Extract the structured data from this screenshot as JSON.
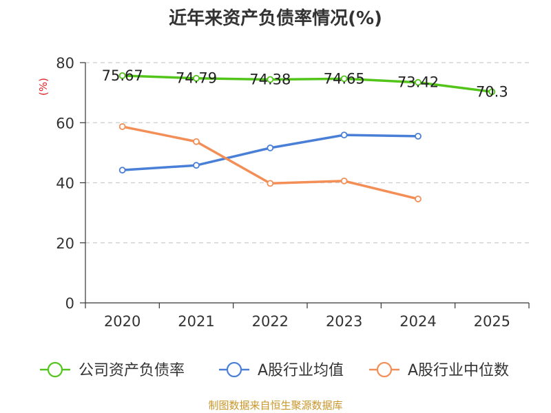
{
  "chart_data": {
    "type": "line",
    "title": "近年来资产负债率情况(%)",
    "ylabel": "(%)",
    "xlabel": "",
    "categories": [
      "2020",
      "2021",
      "2022",
      "2023",
      "2024",
      "2025"
    ],
    "ylim": [
      0,
      80
    ],
    "yticks": [
      0,
      20,
      40,
      60,
      80
    ],
    "grid": true,
    "legend_position": "bottom",
    "series": [
      {
        "name": "公司资产负债率",
        "color": "#52c41a",
        "values": [
          75.67,
          74.79,
          74.38,
          74.65,
          73.42,
          70.3
        ],
        "data_labels": [
          "75.67",
          "74.79",
          "74.38",
          "74.65",
          "73.42",
          "70.3"
        ]
      },
      {
        "name": "A股行业均值",
        "color": "#4a7fd8",
        "values": [
          44.2,
          45.8,
          51.6,
          55.9,
          55.5,
          null
        ],
        "data_labels": []
      },
      {
        "name": "A股行业中位数",
        "color": "#f28e56",
        "values": [
          58.7,
          53.7,
          39.8,
          40.6,
          34.6,
          null
        ],
        "data_labels": []
      }
    ]
  },
  "footer": {
    "source": "制图数据来自恒生聚源数据库",
    "source_color": "#c8962b"
  },
  "colors": {
    "axis": "#333333",
    "grid": "#cccccc",
    "ylabel": "#e02020"
  }
}
